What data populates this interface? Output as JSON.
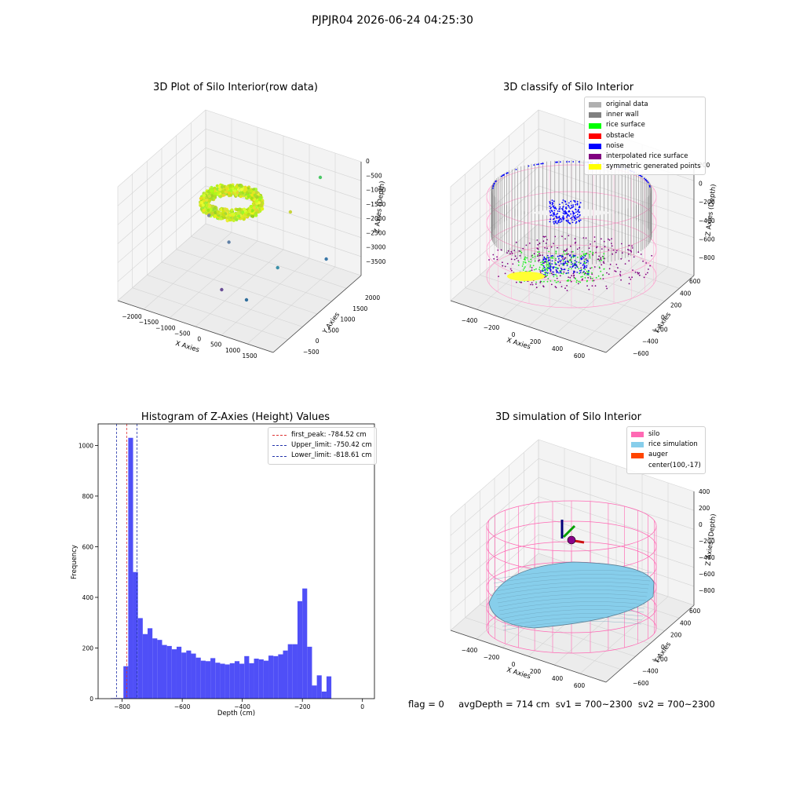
{
  "suptitle": "PJPJR04 2026-06-24 04:25:30",
  "status_text": "flag = 0     avgDepth = 714 cm  sv1 = 700~2300  sv2 = 700~2300",
  "chart_data": [
    {
      "type": "scatter",
      "title": "3D Plot of Silo Interior(row data)",
      "xlabel": "X Axies",
      "ylabel": "Y Axies",
      "zlabel": "Z Axies (Depth)",
      "xticks": [
        -2000,
        -1500,
        -1000,
        -500,
        0,
        500,
        1000,
        1500
      ],
      "yticks": [
        -500,
        0,
        500,
        1000,
        1500,
        2000
      ],
      "zticks": [
        0,
        -500,
        -1000,
        -1500,
        -2000,
        -2500,
        -3000,
        -3500
      ],
      "outliers": [
        {
          "x": -1000,
          "y": 300,
          "z": -2300,
          "color": "#808c9a"
        },
        {
          "x": -450,
          "y": 100,
          "z": -2700,
          "color": "#6080a6"
        },
        {
          "x": 800,
          "y": 1600,
          "z": -2000,
          "color": "#4cc867"
        },
        {
          "x": 500,
          "y": 900,
          "z": -2400,
          "color": "#c8d43c"
        },
        {
          "x": 900,
          "y": -400,
          "z": -3000,
          "color": "#3a8fa8"
        },
        {
          "x": 1300,
          "y": 900,
          "z": -3200,
          "color": "#3b78a8"
        },
        {
          "x": -400,
          "y": -300,
          "z": -3400,
          "color": "#6a4e96"
        },
        {
          "x": 100,
          "y": -200,
          "z": -3600,
          "color": "#2f6e9c"
        }
      ]
    },
    {
      "type": "scatter",
      "title": "3D classify of Silo Interior",
      "xlabel": "X Axies",
      "ylabel": "Y Axies",
      "zlabel": "Z Axies (Depth)",
      "xticks": [
        -400,
        -200,
        0,
        200,
        400,
        600
      ],
      "yticks": [
        -600,
        -400,
        -200,
        0,
        200,
        400,
        600
      ],
      "zticks": [
        200,
        0,
        -200,
        -400,
        -600,
        -800
      ],
      "legend": [
        {
          "label": "original data",
          "color": "#b0b0b0"
        },
        {
          "label": "inner wall",
          "color": "#808080"
        },
        {
          "label": "rice surface",
          "color": "#00ff00"
        },
        {
          "label": "obstacle",
          "color": "#ff0000"
        },
        {
          "label": "noise",
          "color": "#0000ff"
        },
        {
          "label": "interpolated rice surface",
          "color": "#800080"
        },
        {
          "label": "symmetric generated points",
          "color": "#ffff00"
        }
      ]
    },
    {
      "type": "bar",
      "title": "Histogram of Z-Axies (Height) Values",
      "xlabel": "Depth (cm)",
      "ylabel": "Frequency",
      "xlim": [
        -880,
        40
      ],
      "ylim": [
        0,
        1085
      ],
      "xticks": [
        -800,
        -600,
        -400,
        -200,
        0
      ],
      "yticks": [
        0,
        200,
        400,
        600,
        800,
        1000
      ],
      "bin_start": -828,
      "bin_width": 16.1,
      "values": [
        2,
        2,
        128,
        1030,
        500,
        318,
        255,
        278,
        238,
        232,
        212,
        208,
        195,
        205,
        182,
        190,
        178,
        162,
        150,
        148,
        160,
        142,
        138,
        135,
        140,
        148,
        138,
        168,
        140,
        158,
        155,
        150,
        170,
        168,
        175,
        190,
        215,
        215,
        385,
        435,
        205,
        52,
        92,
        28,
        88
      ],
      "vlines": [
        {
          "label": "first_peak: -784.52 cm",
          "x": -784.52,
          "color": "#dd3333"
        },
        {
          "label": "Upper_limit: -750.42 cm",
          "x": -750.42,
          "color": "#2233aa"
        },
        {
          "label": "Lower_limit: -818.61 cm",
          "x": -818.61,
          "color": "#2233aa"
        }
      ]
    },
    {
      "type": "scatter",
      "title": "3D simulation of Silo Interior",
      "xlabel": "X Axies",
      "ylabel": "Y Axies",
      "zlabel": "Z Axies (Depth)",
      "xticks": [
        -400,
        -200,
        0,
        200,
        400,
        600
      ],
      "yticks": [
        -600,
        -400,
        -200,
        0,
        200,
        400,
        600
      ],
      "zticks": [
        400,
        200,
        0,
        -200,
        -400,
        -600,
        -800
      ],
      "legend": [
        {
          "label": "silo",
          "color": "#ff69b4"
        },
        {
          "label": "rice simulation",
          "color": "#87ceeb"
        },
        {
          "label": "auger",
          "color": "#ff4500"
        },
        {
          "label": "center(100,-17)",
          "color": ""
        }
      ]
    }
  ]
}
